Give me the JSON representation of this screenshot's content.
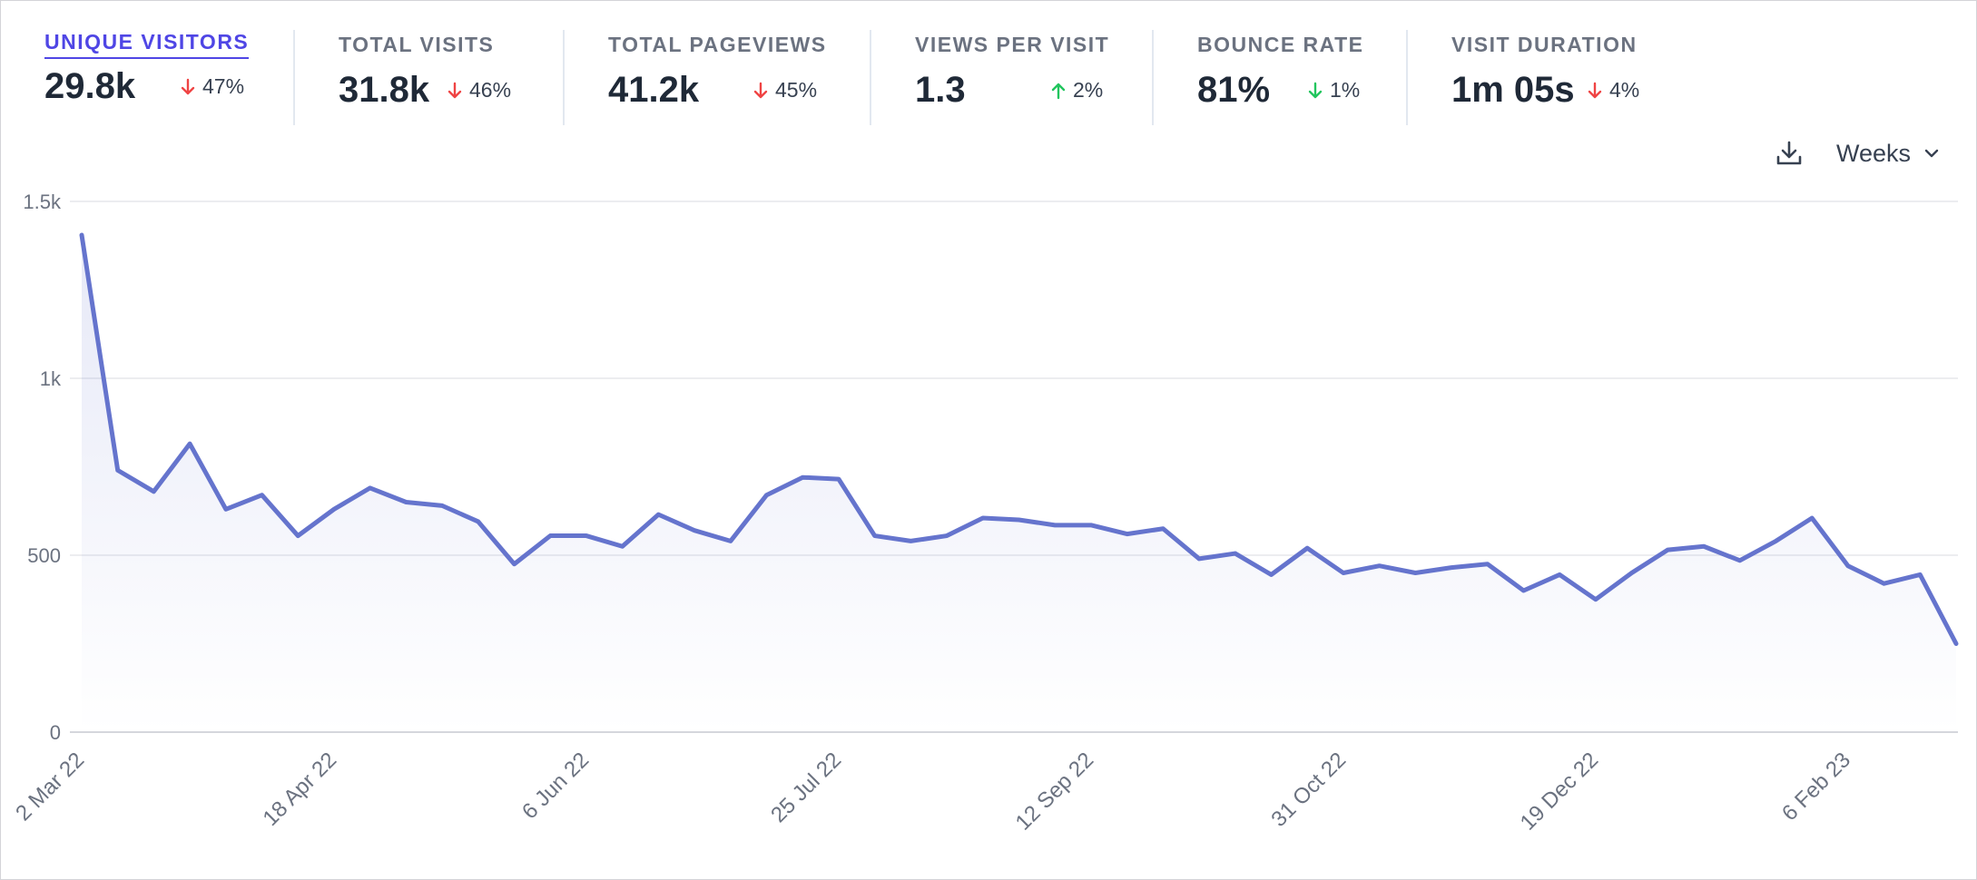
{
  "metrics": [
    {
      "label": "UNIQUE VISITORS",
      "value": "29.8k",
      "change": "47%",
      "direction": "down",
      "active": true
    },
    {
      "label": "TOTAL VISITS",
      "value": "31.8k",
      "change": "46%",
      "direction": "down",
      "active": false
    },
    {
      "label": "TOTAL PAGEVIEWS",
      "value": "41.2k",
      "change": "45%",
      "direction": "down",
      "active": false
    },
    {
      "label": "VIEWS PER VISIT",
      "value": "1.3",
      "change": "2%",
      "direction": "up",
      "active": false
    },
    {
      "label": "BOUNCE RATE",
      "value": "81%",
      "change": "1%",
      "direction": "down",
      "active": false
    },
    {
      "label": "VISIT DURATION",
      "value": "1m 05s",
      "change": "4%",
      "direction": "down",
      "active": false
    }
  ],
  "toolbar": {
    "interval_label": "Weeks",
    "download_icon": "download-icon",
    "dropdown_icon": "chevron-down-icon"
  },
  "colors": {
    "line": "#6574cd",
    "active": "#4f46e5",
    "down": "#ef4444",
    "up": "#22c55e"
  },
  "chart_data": {
    "type": "line",
    "title": "Unique visitors",
    "ylim": [
      0,
      1500
    ],
    "yticks": [
      {
        "value": 0,
        "label": "0"
      },
      {
        "value": 500,
        "label": "500"
      },
      {
        "value": 1000,
        "label": "1k"
      },
      {
        "value": 1500,
        "label": "1.5k"
      }
    ],
    "xtick_labels": [
      {
        "index": 0,
        "label": "2 Mar 22"
      },
      {
        "index": 7,
        "label": "18 Apr 22"
      },
      {
        "index": 14,
        "label": "6 Jun 22"
      },
      {
        "index": 21,
        "label": "25 Jul 22"
      },
      {
        "index": 28,
        "label": "12 Sep 22"
      },
      {
        "index": 35,
        "label": "31 Oct 22"
      },
      {
        "index": 42,
        "label": "19 Dec 22"
      },
      {
        "index": 49,
        "label": "6 Feb 23"
      }
    ],
    "series": [
      {
        "name": "Unique visitors",
        "values": [
          1405,
          740,
          680,
          815,
          630,
          670,
          555,
          630,
          690,
          650,
          640,
          595,
          475,
          555,
          555,
          525,
          615,
          570,
          540,
          670,
          720,
          715,
          555,
          540,
          555,
          605,
          600,
          585,
          585,
          560,
          575,
          490,
          505,
          445,
          520,
          450,
          470,
          450,
          465,
          475,
          400,
          445,
          375,
          450,
          515,
          525,
          485,
          540,
          605,
          470,
          420,
          445,
          250
        ]
      }
    ]
  }
}
